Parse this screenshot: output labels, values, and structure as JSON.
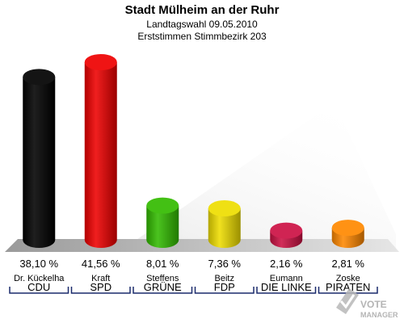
{
  "header": {
    "title": "Stadt Mülheim an der Ruhr",
    "subtitle1": "Landtagswahl 09.05.2010",
    "subtitle2": "Erststimmen Stimmbezirk 203"
  },
  "chart_data": {
    "type": "bar",
    "title": "Stadt Mülheim an der Ruhr",
    "subtitle": [
      "Landtagswahl 09.05.2010",
      "Erststimmen Stimmbezirk 203"
    ],
    "categories": [
      "CDU",
      "SPD",
      "GRÜNE",
      "FDP",
      "DIE LINKE",
      "PIRATEN"
    ],
    "candidates": [
      "Dr. Kückelha",
      "Kraft",
      "Steffens",
      "Beitz",
      "Eumann",
      "Zoske"
    ],
    "values": [
      38.1,
      41.56,
      8.01,
      7.36,
      2.16,
      2.81
    ],
    "value_labels": [
      "38,10 %",
      "41,56 %",
      "8,01 %",
      "7,36 %",
      "2,16 %",
      "2,81 %"
    ],
    "colors": [
      "#000000",
      "#ee0000",
      "#33bb00",
      "#eedd00",
      "#cc1144",
      "#ff8800"
    ],
    "unit": "%",
    "grid": false,
    "legend": "none"
  },
  "watermark": {
    "text_line1": "VOTE",
    "text_line2": "MANAGER"
  }
}
